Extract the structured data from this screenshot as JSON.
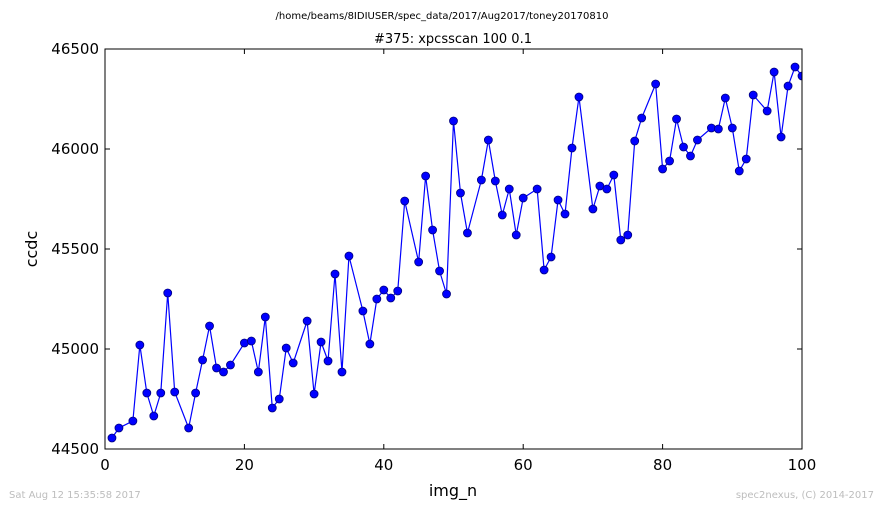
{
  "figure": {
    "suptitle": "/home/beams/8IDIUSER/spec_data/2017/Aug2017/toney20170810",
    "footer_left": "Sat Aug 12 15:35:58 2017",
    "footer_right": "spec2nexus, (C) 2014-2017"
  },
  "colors": {
    "series": "#0000ff",
    "marker_edge": "#000080"
  },
  "chart_data": {
    "type": "line",
    "title": "#375: xpcsscan 100 0.1",
    "xlabel": "img_n",
    "ylabel": "ccdc",
    "xlim": [
      0,
      100
    ],
    "ylim": [
      44500,
      46500
    ],
    "xticks": [
      0,
      20,
      40,
      60,
      80,
      100
    ],
    "yticks": [
      44500,
      45000,
      45500,
      46000,
      46500
    ],
    "xtick_labels": [
      "0",
      "20",
      "40",
      "60",
      "80",
      "100"
    ],
    "ytick_labels": [
      "44500",
      "45000",
      "45500",
      "46000",
      "46500"
    ],
    "grid": false,
    "marker": "circle",
    "series": [
      {
        "x": [
          1,
          2,
          4,
          5,
          6,
          7,
          8,
          9,
          10,
          12,
          13,
          14,
          15,
          16,
          17,
          18,
          20,
          21,
          22,
          23,
          24,
          25,
          26,
          27,
          29,
          30,
          31,
          32,
          33,
          34,
          35,
          37,
          38,
          39,
          40,
          41,
          42,
          43,
          45,
          46,
          47,
          48,
          49,
          50,
          51,
          52,
          54,
          55,
          56,
          57,
          58,
          59,
          60,
          62,
          63,
          64,
          65,
          66,
          67,
          68,
          70,
          71,
          72,
          73,
          74,
          75,
          76,
          77,
          79,
          80,
          81,
          82,
          83,
          84,
          85,
          87,
          88,
          89,
          90,
          91,
          92,
          93,
          95,
          96,
          97,
          98,
          99,
          100
        ],
        "y": [
          44555,
          44605,
          44640,
          45020,
          44780,
          44665,
          44780,
          45280,
          44785,
          44605,
          44780,
          44945,
          45115,
          44905,
          44885,
          44920,
          45030,
          45040,
          44885,
          45160,
          44705,
          44750,
          45005,
          44930,
          45140,
          44775,
          45035,
          44940,
          45375,
          44885,
          45465,
          45190,
          45025,
          45250,
          45295,
          45255,
          45290,
          45740,
          45435,
          45865,
          45595,
          45390,
          45275,
          46140,
          45780,
          45580,
          45845,
          46045,
          45840,
          45670,
          45800,
          45570,
          45755,
          45800,
          45395,
          45460,
          45745,
          45675,
          46005,
          46260,
          45700,
          45815,
          45800,
          45870,
          45545,
          45570,
          46040,
          46155,
          46325,
          45900,
          45940,
          46150,
          46010,
          45965,
          46045,
          46105,
          46100,
          46255,
          46105,
          45890,
          45950,
          46270,
          46190,
          46385,
          46060,
          46315,
          46410,
          46365
        ]
      }
    ]
  }
}
